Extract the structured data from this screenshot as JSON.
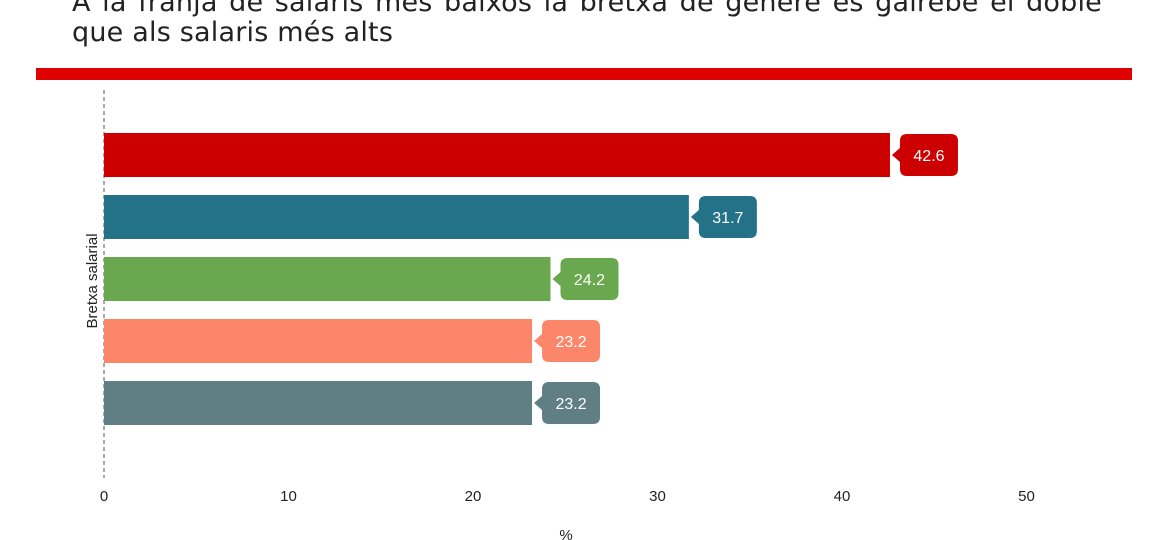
{
  "chart_data": {
    "type": "bar",
    "orientation": "horizontal",
    "title": "A la franja de salaris més baixos la bretxa de gènere és gairebé el doble que als salaris més alts",
    "xlabel": "%",
    "ylabel": "Bretxa salarial",
    "categories": [
      "",
      "",
      "",
      "",
      ""
    ],
    "values": [
      42.6,
      31.7,
      24.2,
      23.2,
      23.2
    ],
    "value_labels": [
      "42.6",
      "31.7",
      "24.2",
      "23.2",
      "23.2"
    ],
    "colors": [
      "#cc0000",
      "#237287",
      "#6aa84f",
      "#fc8669",
      "#607f84"
    ],
    "xlim": [
      0,
      55
    ],
    "xticks": [
      0,
      10,
      20,
      30,
      40,
      50
    ],
    "xtick_labels": [
      "0",
      "10",
      "20",
      "30",
      "40",
      "50"
    ],
    "grid": false,
    "legend": "none",
    "value_label_style": "callout"
  },
  "accent_color": "#e00000"
}
